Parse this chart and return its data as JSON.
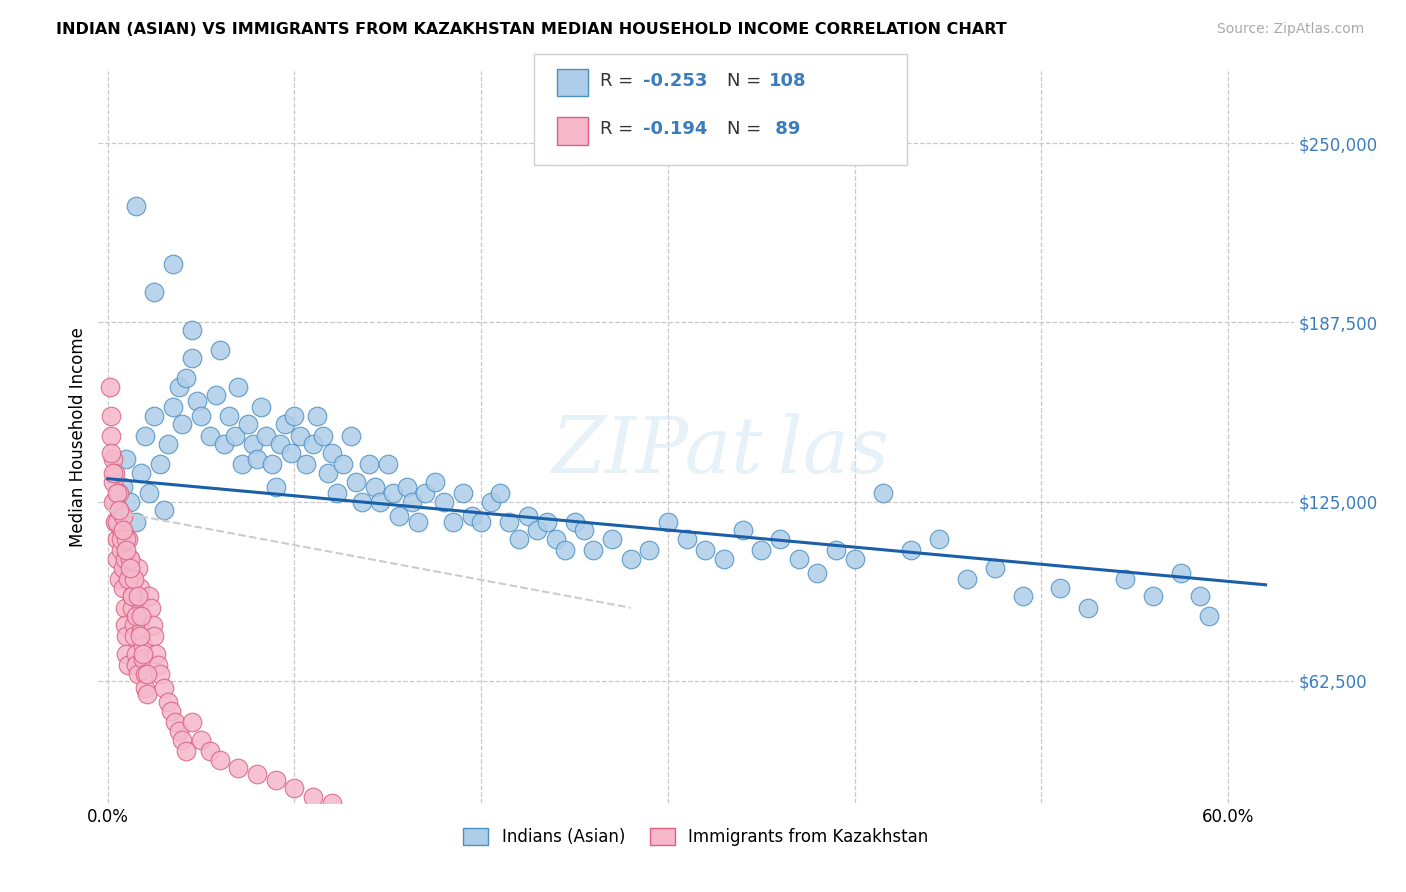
{
  "title": "INDIAN (ASIAN) VS IMMIGRANTS FROM KAZAKHSTAN MEDIAN HOUSEHOLD INCOME CORRELATION CHART",
  "source": "Source: ZipAtlas.com",
  "ylabel": "Median Household Income",
  "y_ticks": [
    62500,
    125000,
    187500,
    250000
  ],
  "y_tick_labels": [
    "$62,500",
    "$125,000",
    "$187,500",
    "$250,000"
  ],
  "x_ticks": [
    0.0,
    0.1,
    0.2,
    0.3,
    0.4,
    0.5,
    0.6
  ],
  "xlim": [
    -0.005,
    0.635
  ],
  "ylim": [
    20000,
    275000
  ],
  "watermark": "ZIPat las",
  "blue_color": "#aecde8",
  "blue_edge": "#4a90c4",
  "pink_color": "#f5b8cb",
  "pink_edge": "#d96080",
  "trend_blue": "#1a5fa8",
  "trend_pink": "#c06080",
  "background": "#ffffff",
  "grid_color": "#c8c8c8",
  "blue_trend_x0": 0.0,
  "blue_trend_x1": 0.62,
  "blue_trend_y0": 133000,
  "blue_trend_y1": 96000,
  "pink_trend_x0": 0.0,
  "pink_trend_x1": 0.28,
  "pink_trend_y0": 122000,
  "pink_trend_y1": 88000,
  "blue_scatter_x": [
    0.008,
    0.01,
    0.012,
    0.015,
    0.018,
    0.02,
    0.022,
    0.025,
    0.028,
    0.03,
    0.032,
    0.035,
    0.038,
    0.04,
    0.042,
    0.045,
    0.048,
    0.05,
    0.055,
    0.058,
    0.06,
    0.062,
    0.065,
    0.068,
    0.07,
    0.072,
    0.075,
    0.078,
    0.08,
    0.082,
    0.085,
    0.088,
    0.09,
    0.092,
    0.095,
    0.098,
    0.1,
    0.103,
    0.106,
    0.11,
    0.112,
    0.115,
    0.118,
    0.12,
    0.123,
    0.126,
    0.13,
    0.133,
    0.136,
    0.14,
    0.143,
    0.146,
    0.15,
    0.153,
    0.156,
    0.16,
    0.163,
    0.166,
    0.17,
    0.175,
    0.18,
    0.185,
    0.19,
    0.195,
    0.2,
    0.205,
    0.21,
    0.215,
    0.22,
    0.225,
    0.23,
    0.235,
    0.24,
    0.245,
    0.25,
    0.255,
    0.26,
    0.27,
    0.28,
    0.29,
    0.3,
    0.31,
    0.32,
    0.33,
    0.34,
    0.35,
    0.36,
    0.37,
    0.38,
    0.39,
    0.4,
    0.415,
    0.43,
    0.445,
    0.46,
    0.475,
    0.49,
    0.51,
    0.525,
    0.545,
    0.56,
    0.575,
    0.585,
    0.59,
    0.015,
    0.025,
    0.035,
    0.045
  ],
  "blue_scatter_y": [
    130000,
    140000,
    125000,
    118000,
    135000,
    148000,
    128000,
    155000,
    138000,
    122000,
    145000,
    158000,
    165000,
    152000,
    168000,
    175000,
    160000,
    155000,
    148000,
    162000,
    178000,
    145000,
    155000,
    148000,
    165000,
    138000,
    152000,
    145000,
    140000,
    158000,
    148000,
    138000,
    130000,
    145000,
    152000,
    142000,
    155000,
    148000,
    138000,
    145000,
    155000,
    148000,
    135000,
    142000,
    128000,
    138000,
    148000,
    132000,
    125000,
    138000,
    130000,
    125000,
    138000,
    128000,
    120000,
    130000,
    125000,
    118000,
    128000,
    132000,
    125000,
    118000,
    128000,
    120000,
    118000,
    125000,
    128000,
    118000,
    112000,
    120000,
    115000,
    118000,
    112000,
    108000,
    118000,
    115000,
    108000,
    112000,
    105000,
    108000,
    118000,
    112000,
    108000,
    105000,
    115000,
    108000,
    112000,
    105000,
    100000,
    108000,
    105000,
    128000,
    108000,
    112000,
    98000,
    102000,
    92000,
    95000,
    88000,
    98000,
    92000,
    100000,
    92000,
    85000,
    228000,
    198000,
    208000,
    185000
  ],
  "pink_scatter_x": [
    0.001,
    0.002,
    0.002,
    0.003,
    0.003,
    0.004,
    0.004,
    0.005,
    0.005,
    0.006,
    0.006,
    0.007,
    0.007,
    0.008,
    0.008,
    0.009,
    0.009,
    0.01,
    0.01,
    0.011,
    0.011,
    0.012,
    0.012,
    0.013,
    0.013,
    0.014,
    0.014,
    0.015,
    0.015,
    0.016,
    0.016,
    0.017,
    0.017,
    0.018,
    0.018,
    0.019,
    0.019,
    0.02,
    0.02,
    0.021,
    0.022,
    0.023,
    0.024,
    0.025,
    0.026,
    0.027,
    0.028,
    0.03,
    0.032,
    0.034,
    0.036,
    0.038,
    0.04,
    0.042,
    0.045,
    0.05,
    0.055,
    0.06,
    0.07,
    0.08,
    0.09,
    0.1,
    0.11,
    0.12,
    0.003,
    0.005,
    0.007,
    0.009,
    0.011,
    0.013,
    0.015,
    0.017,
    0.019,
    0.021,
    0.004,
    0.006,
    0.008,
    0.01,
    0.012,
    0.014,
    0.016,
    0.018,
    0.002,
    0.003,
    0.005,
    0.006,
    0.008,
    0.01,
    0.012
  ],
  "pink_scatter_y": [
    165000,
    155000,
    148000,
    140000,
    132000,
    125000,
    118000,
    112000,
    105000,
    98000,
    122000,
    115000,
    108000,
    102000,
    95000,
    88000,
    82000,
    78000,
    72000,
    68000,
    112000,
    105000,
    98000,
    92000,
    88000,
    82000,
    78000,
    72000,
    68000,
    65000,
    102000,
    95000,
    90000,
    85000,
    80000,
    75000,
    70000,
    65000,
    60000,
    58000,
    92000,
    88000,
    82000,
    78000,
    72000,
    68000,
    65000,
    60000,
    55000,
    52000,
    48000,
    45000,
    42000,
    38000,
    48000,
    42000,
    38000,
    35000,
    32000,
    30000,
    28000,
    25000,
    22000,
    20000,
    125000,
    118000,
    112000,
    105000,
    98000,
    92000,
    85000,
    78000,
    72000,
    65000,
    135000,
    128000,
    120000,
    112000,
    105000,
    98000,
    92000,
    85000,
    142000,
    135000,
    128000,
    122000,
    115000,
    108000,
    102000
  ]
}
